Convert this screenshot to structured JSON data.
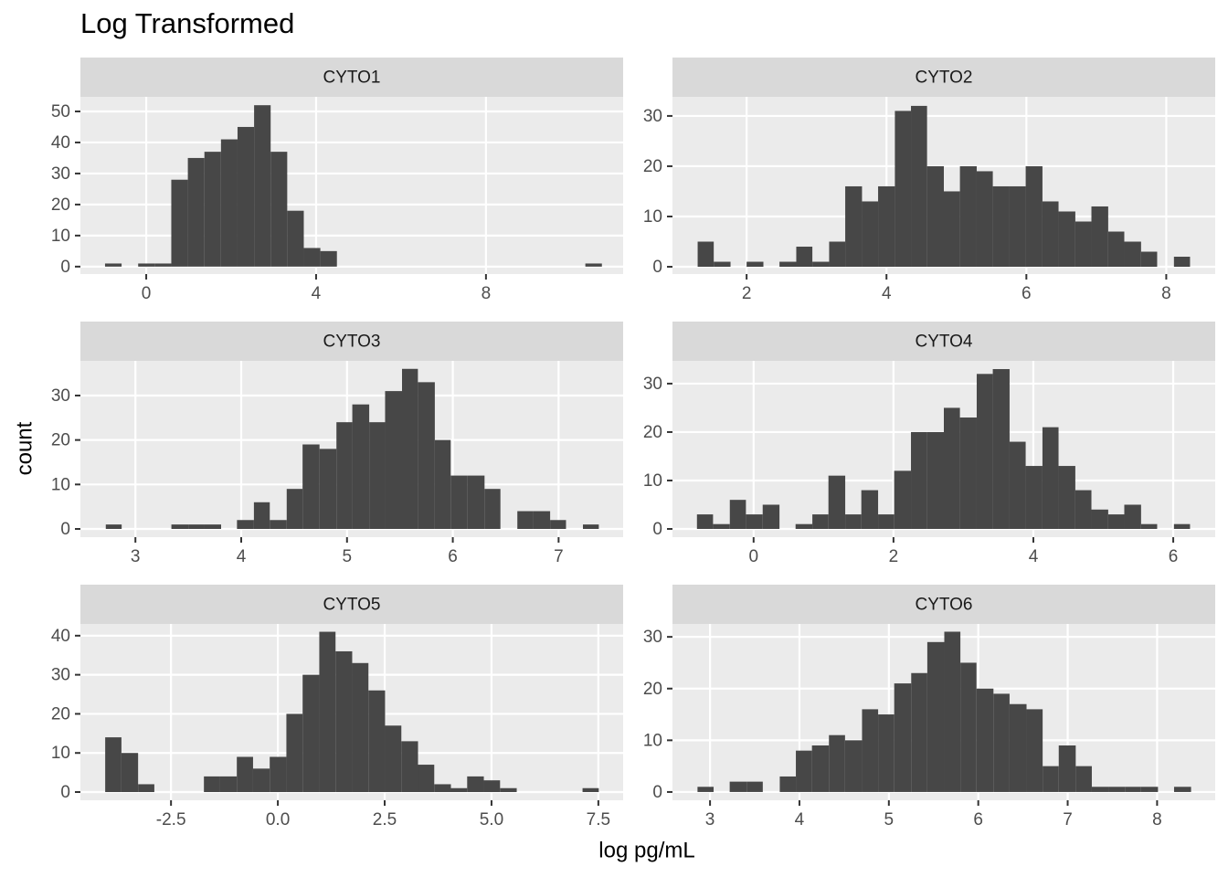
{
  "title": "Log Transformed",
  "x_label": "log pg/mL",
  "y_label": "count",
  "chart_data": [
    {
      "type": "histogram",
      "title": "CYTO1",
      "color": "#474747",
      "grid": true,
      "bins": [
        -0.97,
        -0.58,
        -0.19,
        0.2,
        0.59,
        0.98,
        1.37,
        1.76,
        2.15,
        2.54,
        2.93,
        3.32,
        3.71,
        4.1,
        4.49,
        4.88,
        5.27,
        5.66,
        6.05,
        6.44,
        6.83,
        7.22,
        7.61,
        8.0,
        8.39,
        8.78,
        9.17,
        9.56,
        9.95,
        10.34,
        10.73
      ],
      "counts": [
        1,
        0,
        1,
        1,
        28,
        35,
        37,
        41,
        45,
        52,
        37,
        18,
        6,
        5,
        0,
        0,
        0,
        0,
        0,
        0,
        0,
        0,
        0,
        0,
        0,
        0,
        0,
        0,
        0,
        1
      ],
      "xlim": [
        -1.55,
        11.23
      ],
      "ylim": [
        -2.4,
        54.7
      ],
      "xticks": [
        0,
        4,
        8
      ],
      "yticks": [
        0,
        10,
        20,
        30,
        40,
        50
      ]
    },
    {
      "type": "histogram",
      "title": "CYTO2",
      "color": "#474747",
      "grid": true,
      "bins": [
        1.3,
        1.53,
        1.77,
        2.0,
        2.24,
        2.47,
        2.71,
        2.94,
        3.18,
        3.41,
        3.65,
        3.88,
        4.12,
        4.35,
        4.58,
        4.82,
        5.05,
        5.29,
        5.52,
        5.76,
        5.99,
        6.23,
        6.46,
        6.7,
        6.93,
        7.17,
        7.4,
        7.64,
        7.87,
        8.11,
        8.34
      ],
      "counts": [
        5,
        1,
        0,
        1,
        0,
        1,
        4,
        1,
        5,
        16,
        13,
        16,
        31,
        32,
        20,
        15,
        20,
        19,
        16,
        16,
        20,
        13,
        11,
        9,
        12,
        7,
        5,
        3,
        0,
        2
      ],
      "xlim": [
        0.94,
        8.7
      ],
      "ylim": [
        -1.45,
        33.8
      ],
      "xticks": [
        2,
        4,
        6,
        8
      ],
      "yticks": [
        0,
        10,
        20,
        30
      ]
    },
    {
      "type": "histogram",
      "title": "CYTO3",
      "color": "#474747",
      "grid": true,
      "bins": [
        2.72,
        2.87,
        3.03,
        3.18,
        3.34,
        3.5,
        3.65,
        3.81,
        3.96,
        4.12,
        4.27,
        4.43,
        4.58,
        4.74,
        4.9,
        5.05,
        5.21,
        5.36,
        5.52,
        5.67,
        5.83,
        5.98,
        6.14,
        6.3,
        6.45,
        6.61,
        6.76,
        6.92,
        7.07,
        7.23,
        7.38
      ],
      "counts": [
        1,
        0,
        0,
        0,
        1,
        1,
        1,
        0,
        2,
        6,
        2,
        9,
        19,
        18,
        24,
        28,
        24,
        31,
        36,
        33,
        20,
        12,
        12,
        9,
        0,
        4,
        4,
        2,
        0,
        1
      ],
      "xlim": [
        2.48,
        7.61
      ],
      "ylim": [
        -1.85,
        37.8
      ],
      "xticks": [
        3,
        4,
        5,
        6,
        7
      ],
      "yticks": [
        0,
        10,
        20,
        30
      ]
    },
    {
      "type": "histogram",
      "title": "CYTO4",
      "color": "#474747",
      "grid": true,
      "bins": [
        -0.81,
        -0.58,
        -0.34,
        -0.11,
        0.13,
        0.37,
        0.6,
        0.84,
        1.07,
        1.31,
        1.54,
        1.78,
        2.01,
        2.25,
        2.48,
        2.72,
        2.95,
        3.19,
        3.42,
        3.66,
        3.89,
        4.13,
        4.36,
        4.6,
        4.83,
        5.07,
        5.3,
        5.54,
        5.77,
        6.01,
        6.24
      ],
      "counts": [
        3,
        1,
        6,
        3,
        5,
        0,
        1,
        3,
        11,
        3,
        8,
        3,
        12,
        20,
        20,
        25,
        23,
        32,
        33,
        18,
        13,
        21,
        13,
        8,
        4,
        3,
        5,
        1,
        0,
        1
      ],
      "xlim": [
        -1.16,
        6.6
      ],
      "ylim": [
        -1.7,
        34.7
      ],
      "xticks": [
        0,
        2,
        4,
        6
      ],
      "yticks": [
        0,
        10,
        20,
        30
      ]
    },
    {
      "type": "histogram",
      "title": "CYTO5",
      "color": "#474747",
      "grid": true,
      "bins": [
        -4.04,
        -3.66,
        -3.27,
        -2.89,
        -2.5,
        -2.12,
        -1.73,
        -1.35,
        -0.96,
        -0.58,
        -0.19,
        0.2,
        0.58,
        0.97,
        1.35,
        1.74,
        2.12,
        2.51,
        2.89,
        3.28,
        3.66,
        4.05,
        4.43,
        4.82,
        5.2,
        5.59,
        5.97,
        6.36,
        6.74,
        7.13,
        7.51
      ],
      "counts": [
        14,
        10,
        2,
        0,
        0,
        0,
        4,
        4,
        9,
        6,
        9,
        20,
        30,
        41,
        36,
        33,
        26,
        17,
        13,
        7,
        2,
        1,
        4,
        3,
        1,
        0,
        0,
        0,
        0,
        1
      ],
      "xlim": [
        -4.62,
        8.08
      ],
      "ylim": [
        -2.1,
        43.0
      ],
      "xticks": [
        -2.5,
        {
          "value": 0,
          "label": "0.0"
        },
        2.5,
        {
          "value": 5,
          "label": "5.0"
        },
        7.5
      ],
      "yticks": [
        0,
        10,
        20,
        30,
        40
      ]
    },
    {
      "type": "histogram",
      "title": "CYTO6",
      "color": "#474747",
      "grid": true,
      "bins": [
        2.86,
        3.04,
        3.22,
        3.41,
        3.59,
        3.78,
        3.96,
        4.14,
        4.33,
        4.51,
        4.7,
        4.88,
        5.06,
        5.25,
        5.43,
        5.62,
        5.8,
        5.98,
        6.17,
        6.35,
        6.54,
        6.72,
        6.9,
        7.09,
        7.27,
        7.46,
        7.64,
        7.82,
        8.01,
        8.19,
        8.38
      ],
      "counts": [
        1,
        0,
        2,
        2,
        0,
        3,
        8,
        9,
        11,
        10,
        16,
        15,
        21,
        23,
        29,
        31,
        25,
        20,
        19,
        17,
        16,
        5,
        9,
        5,
        1,
        1,
        1,
        1,
        0,
        1
      ],
      "xlim": [
        2.58,
        8.65
      ],
      "ylim": [
        -1.6,
        32.5
      ],
      "xticks": [
        3,
        4,
        5,
        6,
        7,
        8
      ],
      "yticks": [
        0,
        10,
        20,
        30
      ]
    }
  ]
}
